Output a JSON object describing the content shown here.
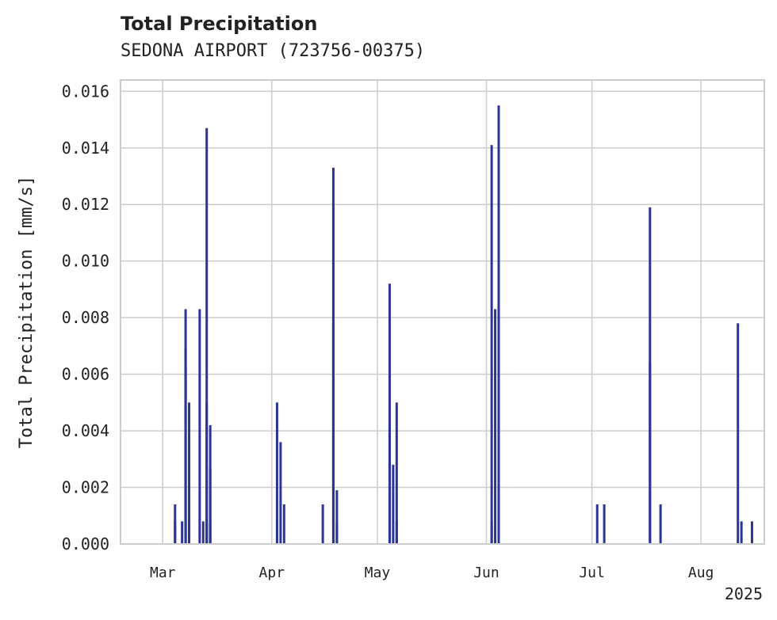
{
  "chart_data": {
    "type": "bar",
    "title": "Total Precipitation",
    "subtitle": "SEDONA AIRPORT (723756-00375)",
    "xlabel": "",
    "ylabel": "Total Precipitation [mm/s]",
    "year_label": "2025",
    "x_ticks": [
      "Mar",
      "Apr",
      "May",
      "Jun",
      "Jul",
      "Aug"
    ],
    "x_tick_dates": [
      "2025-03-01",
      "2025-04-01",
      "2025-05-01",
      "2025-06-01",
      "2025-07-01",
      "2025-08-01"
    ],
    "xlim": [
      "2025-02-17",
      "2025-08-19"
    ],
    "y_ticks": [
      "0.000",
      "0.002",
      "0.004",
      "0.006",
      "0.008",
      "0.010",
      "0.012",
      "0.014",
      "0.016"
    ],
    "ylim": [
      0,
      0.0164
    ],
    "grid": true,
    "bar_color": "#2b3595",
    "x": [
      "2025-03-04",
      "2025-03-04",
      "2025-03-06",
      "2025-03-07",
      "2025-03-07",
      "2025-03-07",
      "2025-03-08",
      "2025-03-08",
      "2025-03-11",
      "2025-03-12",
      "2025-03-13",
      "2025-03-13",
      "2025-03-13",
      "2025-03-14",
      "2025-03-14",
      "2025-03-14",
      "2025-04-02",
      "2025-04-02",
      "2025-04-03",
      "2025-04-04",
      "2025-04-15",
      "2025-04-18",
      "2025-04-18",
      "2025-04-18",
      "2025-04-19",
      "2025-04-19",
      "2025-05-04",
      "2025-05-04",
      "2025-05-05",
      "2025-05-06",
      "2025-05-06",
      "2025-06-02",
      "2025-06-02",
      "2025-06-03",
      "2025-06-04",
      "2025-06-04",
      "2025-07-02",
      "2025-07-04",
      "2025-07-17",
      "2025-07-17",
      "2025-07-20",
      "2025-08-11",
      "2025-08-12",
      "2025-08-15"
    ],
    "values": [
      0.0014,
      0.0008,
      0.0008,
      0.0063,
      0.0069,
      0.0083,
      0.005,
      0.0008,
      0.0083,
      0.0008,
      0.0147,
      0.005,
      0.0008,
      0.0027,
      0.0042,
      0.0008,
      0.0008,
      0.005,
      0.0036,
      0.0014,
      0.0014,
      0.0078,
      0.0133,
      0.0119,
      0.0019,
      0.0008,
      0.0042,
      0.0092,
      0.0028,
      0.005,
      0.0008,
      0.0008,
      0.0141,
      0.0083,
      0.0155,
      0.0022,
      0.0014,
      0.0014,
      0.0064,
      0.0119,
      0.0014,
      0.0078,
      0.0008,
      0.0008
    ]
  }
}
